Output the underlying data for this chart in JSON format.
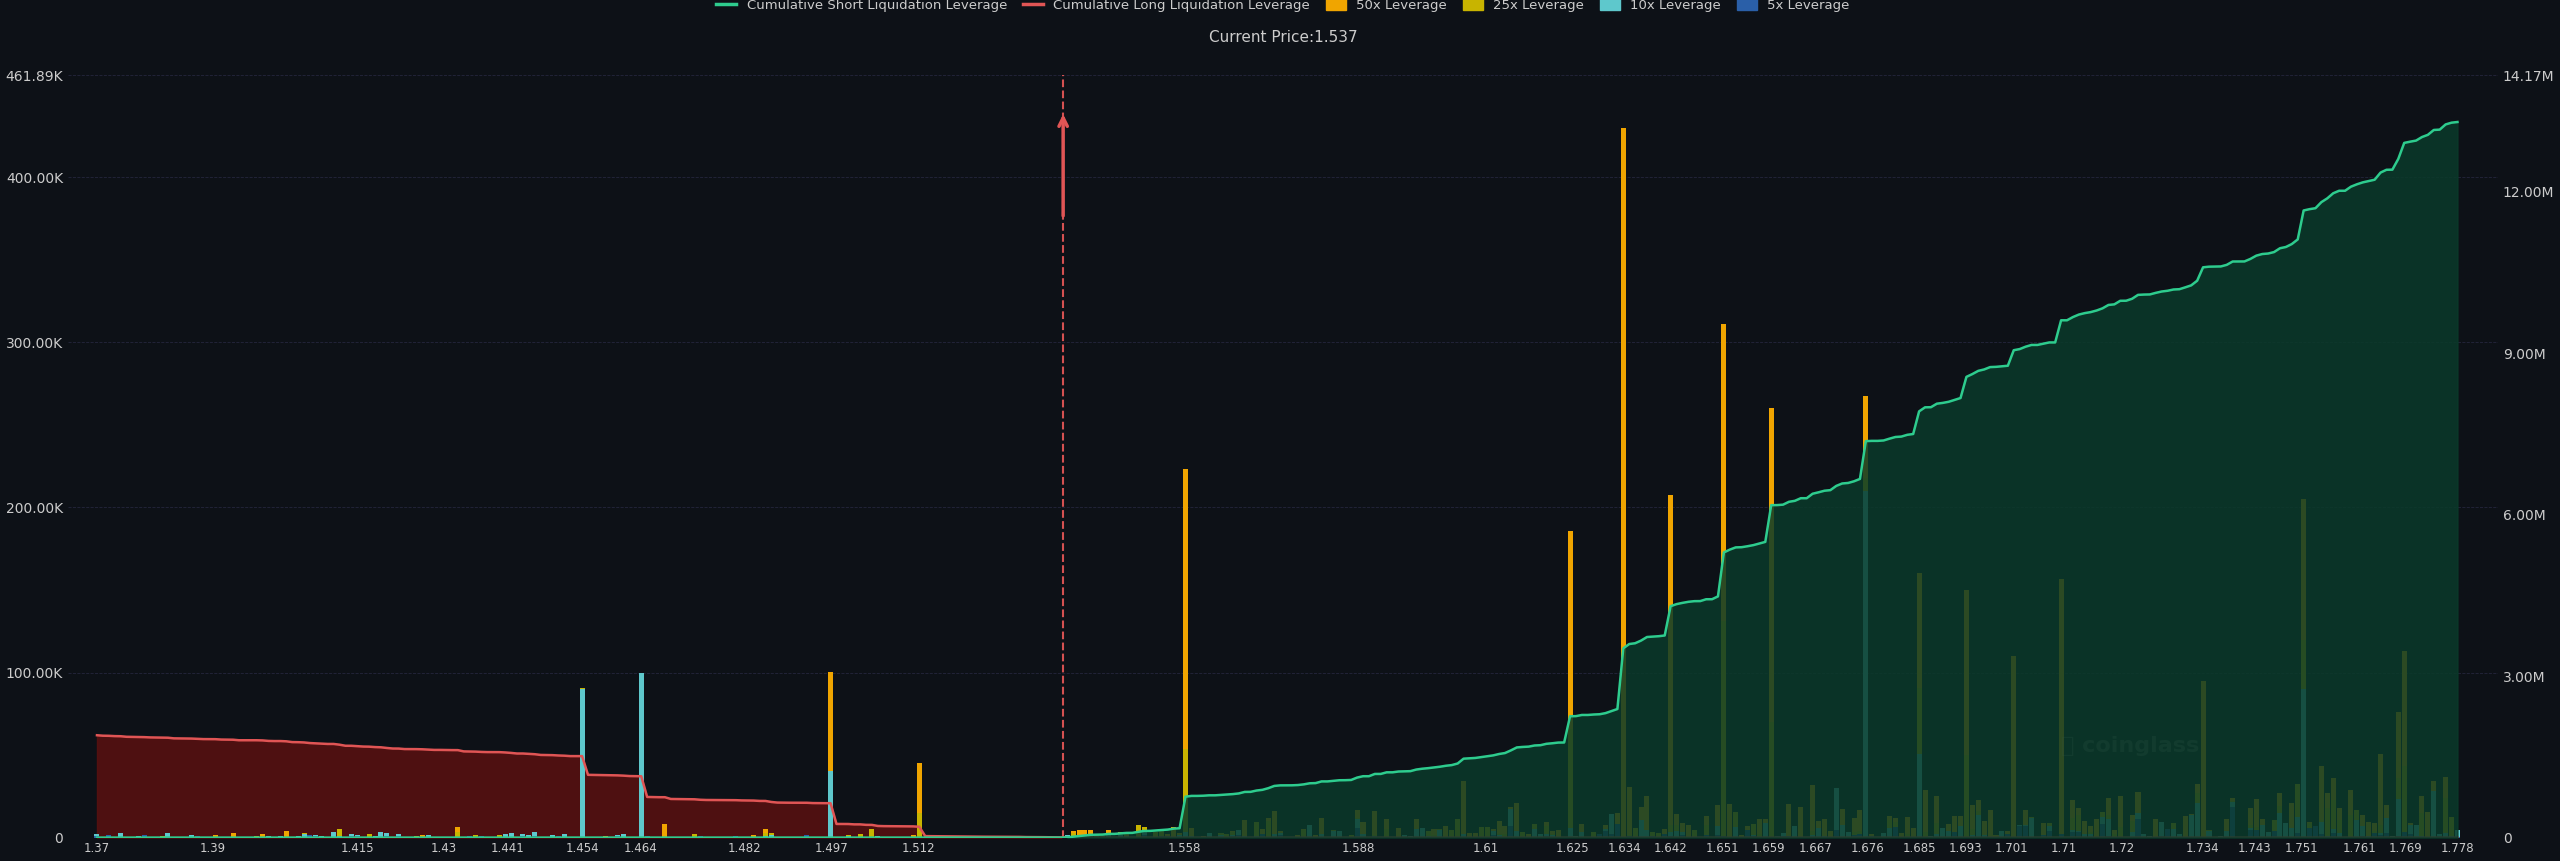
{
  "background_color": "#0d1117",
  "plot_bg_color": "#0d1117",
  "title": "Current Price:1.537",
  "current_price": 1.537,
  "ylim_left": [
    0,
    461890
  ],
  "ylim_right": [
    0,
    14170000
  ],
  "yticks_left": [
    0,
    100000,
    200000,
    300000,
    400000,
    461890
  ],
  "ytick_labels_left": [
    "0",
    "100.00K",
    "200.00K",
    "300.00K",
    "400.00K",
    "461.89K"
  ],
  "yticks_right": [
    0,
    3000000,
    6000000,
    9000000,
    12000000,
    14170000
  ],
  "ytick_labels_right": [
    "0",
    "3.00M",
    "6.00M",
    "9.00M",
    "12.00M",
    "14.17M"
  ],
  "xlim": [
    1.365,
    1.785
  ],
  "xtick_labels": [
    "1.37",
    "1.39",
    "1.415",
    "1.43",
    "1.441",
    "1.454",
    "1.464",
    "1.482",
    "1.497",
    "1.512",
    "1.558",
    "1.588",
    "1.61",
    "1.625",
    "1.634",
    "1.642",
    "1.651",
    "1.659",
    "1.667",
    "1.676",
    "1.685",
    "1.693",
    "1.701",
    "1.71",
    "1.72",
    "1.734",
    "1.743",
    "1.751",
    "1.761",
    "1.769",
    "1.778"
  ],
  "color_short_cum": "#2ecc8e",
  "color_long_cum": "#e05555",
  "color_50x": "#f0a500",
  "color_25x": "#c8b400",
  "color_10x": "#5ec8cc",
  "color_5x": "#2a5fa8",
  "legend_labels": [
    "Cumulative Short Liquidation Leverage",
    "Cumulative Long Liquidation Leverage",
    "50x Leverage",
    "25x Leverage",
    "10x Leverage",
    "5x Leverage"
  ],
  "legend_colors": [
    "#2ecc8e",
    "#e05555",
    "#f0a500",
    "#c8b400",
    "#5ec8cc",
    "#2a5fa8"
  ],
  "text_color": "#cccccc",
  "grid_color": "#333355",
  "arrow_color": "#e05555",
  "watermark": "coinglass"
}
